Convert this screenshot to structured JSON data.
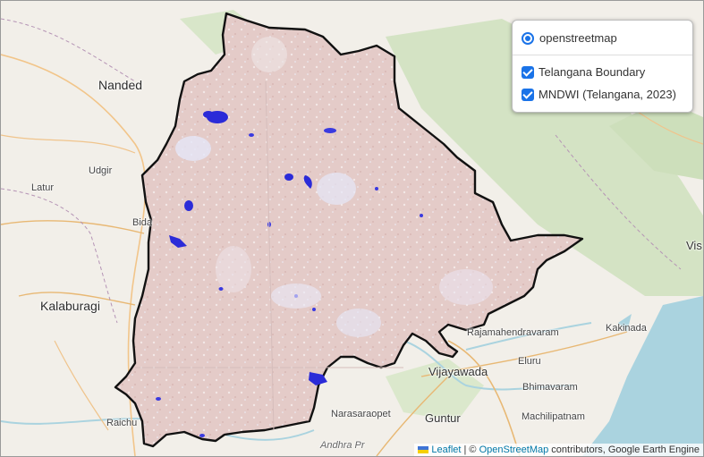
{
  "layers_control": {
    "base_layer": {
      "label": "openstreetmap",
      "selected": true
    },
    "overlays": [
      {
        "label": "Telangana Boundary",
        "checked": true
      },
      {
        "label": "MNDWI (Telangana, 2023)",
        "checked": true
      }
    ]
  },
  "places": {
    "nanded": "Nanded",
    "udgir": "Udgir",
    "latur": "Latur",
    "bida": "Bida",
    "kalaburagi": "Kalaburagi",
    "raichu": "Raichu",
    "rajamahendravaram": "Rajamahendravaram",
    "kakinada": "Kakinada",
    "eluru": "Eluru",
    "vijayawada": "Vijayawada",
    "bhimavaram": "Bhimavaram",
    "narasaraopet": "Narasaraopet",
    "guntur": "Guntur",
    "machilipatnam": "Machilipatnam",
    "vis": "Vis",
    "andhra": "Andhra Pr"
  },
  "attribution": {
    "leaflet": "Leaflet",
    "separator": " | © ",
    "osm": "OpenStreetMap",
    "rest": " contributors, Google Earth Engine"
  },
  "colors": {
    "boundary": "#111111",
    "mndwi_fill": "#e6cdcb",
    "water": "#2b2bd8",
    "forest": "#cfe0bf",
    "sea": "#aad3df"
  }
}
